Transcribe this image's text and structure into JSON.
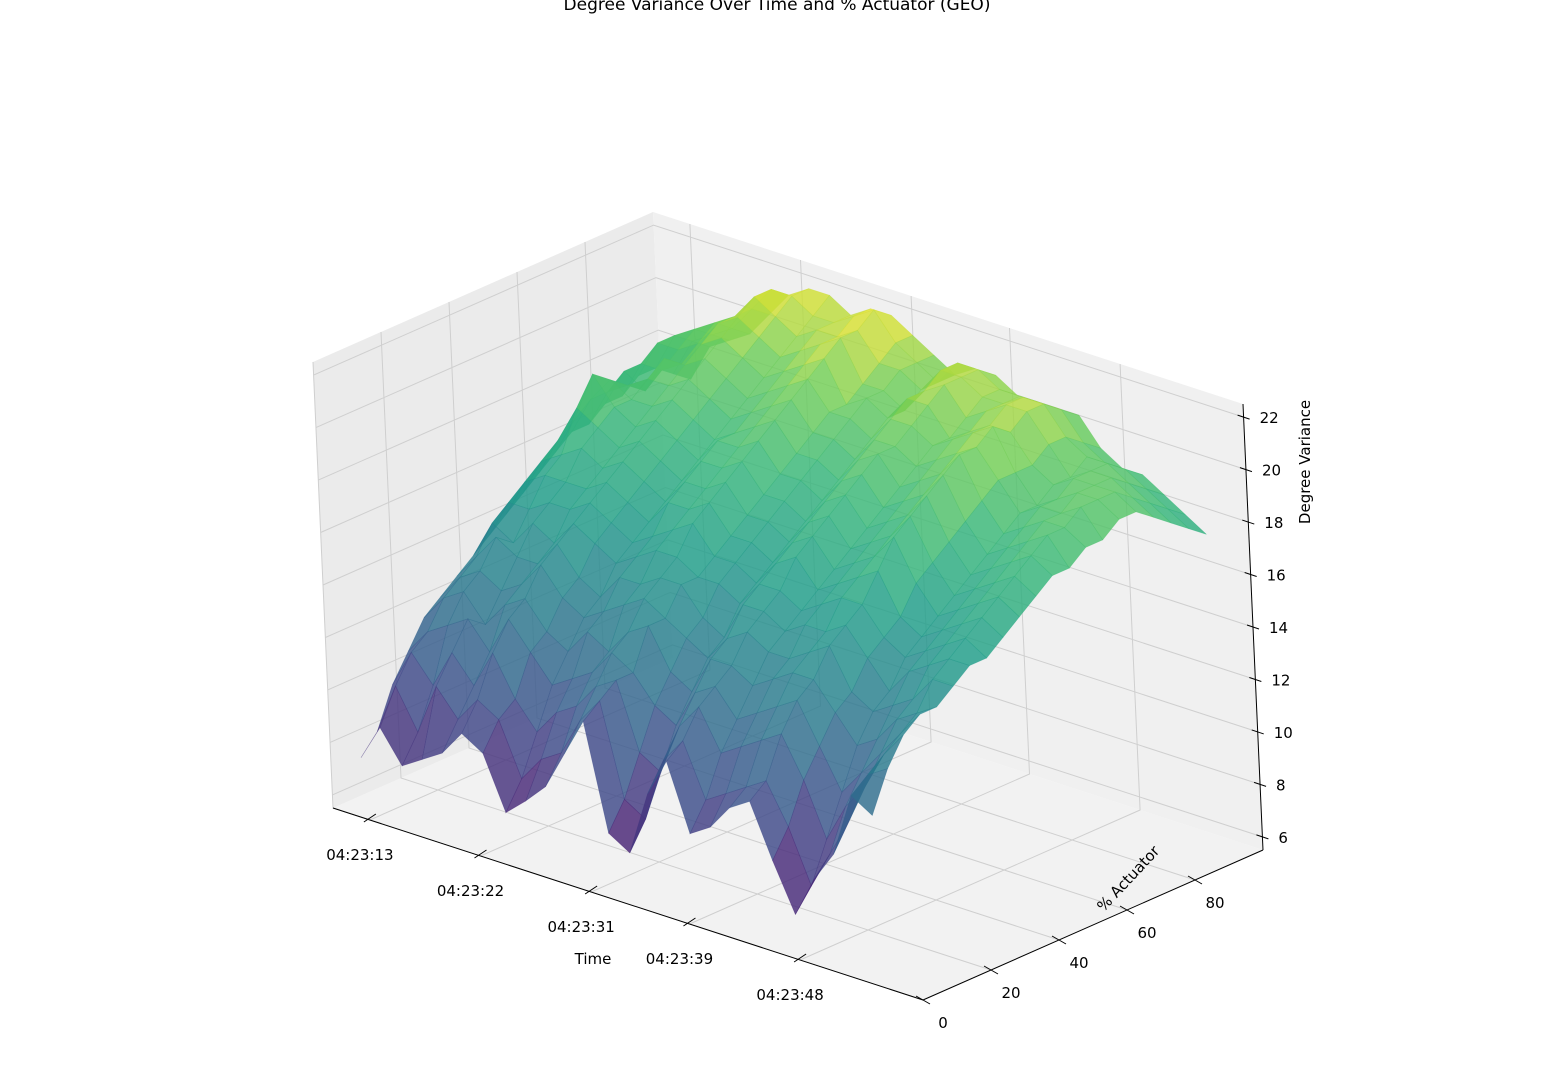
{
  "chart_data": {
    "type": "surface3d",
    "title": "Degree Variance Over Time and % Actuator (GEO)",
    "xlabel": "Time",
    "ylabel": "% Actuator",
    "zlabel": "Degree Variance",
    "x_ticks": [
      "04:23:13",
      "04:23:22",
      "04:23:31",
      "04:23:39",
      "04:23:48"
    ],
    "y_ticks": [
      "0",
      "20",
      "40",
      "60",
      "80"
    ],
    "z_ticks": [
      "6",
      "8",
      "10",
      "12",
      "14",
      "16",
      "18",
      "20",
      "22"
    ],
    "x_range": [
      "04:23:10",
      "04:23:58"
    ],
    "y_range": [
      0,
      100
    ],
    "z_range": [
      5.5,
      22.5
    ],
    "z_rows_every_5_percent": [
      [
        7.8,
        9.2,
        8.0,
        8.5,
        9.0,
        10.0,
        9.5,
        7.5,
        8.2,
        9.0,
        10.5,
        12.0,
        8.0,
        7.5,
        10.0,
        11.5,
        9.0,
        9.5,
        10.5,
        11.0,
        9.0,
        7.2,
        8.8,
        10.0,
        12.5,
        12.0
      ],
      [
        8.5,
        10.5,
        9.0,
        11.0,
        10.0,
        11.0,
        10.5,
        8.5,
        9.5,
        10.0,
        11.5,
        12.5,
        9.0,
        8.5,
        11.0,
        12.0,
        10.0,
        10.5,
        11.0,
        11.5,
        10.0,
        8.0,
        9.5,
        11.0,
        13.0,
        13.5
      ],
      [
        10.0,
        11.5,
        10.5,
        12.0,
        11.0,
        12.5,
        11.0,
        10.0,
        11.0,
        11.5,
        12.5,
        13.0,
        10.5,
        10.0,
        12.0,
        13.0,
        11.5,
        12.0,
        12.5,
        13.0,
        11.5,
        9.5,
        11.0,
        12.0,
        13.5,
        14.5
      ],
      [
        11.0,
        12.0,
        12.5,
        13.0,
        12.0,
        13.5,
        12.5,
        11.5,
        12.0,
        12.5,
        13.5,
        13.0,
        12.0,
        11.5,
        13.0,
        13.5,
        12.5,
        13.0,
        13.5,
        14.0,
        12.5,
        11.0,
        12.0,
        13.0,
        14.0,
        15.0
      ],
      [
        12.0,
        13.0,
        13.5,
        12.5,
        13.5,
        14.0,
        13.0,
        12.5,
        13.5,
        13.0,
        14.0,
        14.5,
        13.0,
        12.5,
        14.0,
        14.0,
        13.5,
        14.0,
        14.5,
        14.5,
        13.5,
        12.5,
        13.0,
        14.0,
        14.5,
        15.0
      ],
      [
        12.5,
        13.5,
        14.0,
        13.5,
        14.0,
        15.0,
        14.0,
        13.5,
        14.0,
        14.5,
        15.0,
        14.5,
        14.0,
        13.5,
        14.5,
        15.0,
        14.5,
        14.5,
        15.0,
        15.5,
        14.0,
        13.5,
        14.0,
        14.5,
        15.5,
        15.5
      ],
      [
        13.0,
        14.0,
        15.0,
        14.5,
        14.5,
        15.5,
        14.5,
        14.0,
        15.0,
        15.0,
        15.5,
        15.5,
        14.5,
        14.0,
        15.5,
        15.5,
        15.0,
        15.5,
        15.5,
        16.0,
        15.0,
        14.0,
        15.0,
        15.5,
        16.0,
        16.0
      ],
      [
        13.5,
        15.0,
        14.5,
        15.5,
        15.0,
        16.0,
        15.5,
        15.0,
        15.5,
        16.0,
        16.0,
        15.5,
        15.5,
        15.0,
        16.0,
        16.0,
        15.5,
        16.0,
        16.5,
        16.5,
        15.5,
        15.0,
        15.5,
        16.0,
        16.5,
        16.0
      ],
      [
        14.0,
        15.5,
        15.5,
        16.0,
        16.0,
        16.5,
        16.0,
        15.5,
        16.0,
        16.5,
        17.0,
        16.0,
        16.0,
        15.5,
        16.5,
        17.0,
        16.0,
        16.5,
        17.0,
        17.5,
        16.0,
        15.5,
        16.0,
        16.5,
        17.0,
        16.5
      ],
      [
        14.5,
        16.0,
        16.5,
        16.5,
        16.5,
        17.0,
        16.5,
        16.0,
        17.0,
        17.0,
        17.5,
        16.5,
        16.5,
        16.0,
        17.0,
        17.5,
        16.5,
        17.0,
        17.5,
        18.5,
        17.0,
        16.0,
        16.5,
        17.0,
        17.5,
        17.0
      ],
      [
        15.0,
        16.5,
        17.0,
        17.5,
        17.0,
        17.5,
        17.0,
        16.5,
        17.5,
        17.5,
        18.0,
        17.0,
        17.0,
        16.5,
        17.5,
        18.0,
        17.0,
        17.5,
        18.0,
        19.0,
        17.5,
        16.5,
        17.0,
        17.5,
        18.0,
        17.5
      ],
      [
        15.5,
        17.0,
        18.5,
        18.0,
        17.5,
        18.0,
        17.5,
        17.0,
        18.0,
        18.0,
        18.5,
        17.5,
        17.5,
        17.0,
        18.0,
        18.5,
        17.5,
        18.0,
        18.5,
        19.5,
        18.0,
        17.0,
        17.5,
        18.0,
        18.5,
        18.0
      ],
      [
        16.0,
        17.5,
        19.5,
        18.5,
        18.0,
        18.5,
        18.0,
        17.5,
        18.5,
        18.5,
        19.0,
        18.0,
        18.0,
        17.5,
        18.5,
        19.0,
        18.0,
        18.5,
        19.0,
        20.0,
        18.5,
        17.5,
        18.0,
        18.5,
        19.0,
        18.0
      ],
      [
        16.5,
        18.0,
        19.0,
        18.5,
        18.5,
        19.0,
        18.5,
        18.0,
        18.5,
        19.0,
        19.5,
        18.5,
        18.5,
        18.0,
        19.0,
        19.5,
        18.5,
        19.0,
        19.5,
        20.5,
        19.0,
        18.0,
        18.5,
        19.0,
        19.0,
        18.5
      ],
      [
        16.5,
        18.0,
        18.5,
        19.0,
        19.0,
        19.5,
        19.0,
        18.5,
        19.0,
        19.5,
        20.0,
        19.0,
        19.0,
        18.5,
        19.5,
        19.5,
        19.0,
        19.5,
        20.0,
        20.5,
        19.5,
        18.5,
        19.0,
        19.0,
        19.5,
        18.5
      ],
      [
        17.0,
        18.5,
        18.0,
        19.5,
        19.5,
        20.0,
        19.5,
        19.0,
        19.5,
        20.0,
        20.5,
        19.5,
        19.5,
        19.0,
        20.0,
        20.0,
        19.5,
        20.0,
        20.5,
        21.0,
        19.5,
        18.5,
        19.0,
        19.5,
        19.5,
        19.0
      ],
      [
        17.0,
        18.5,
        18.5,
        19.0,
        20.0,
        20.5,
        20.0,
        19.5,
        20.0,
        20.5,
        21.0,
        19.5,
        20.0,
        19.5,
        20.5,
        20.5,
        19.5,
        20.0,
        20.5,
        20.5,
        19.5,
        19.0,
        19.5,
        19.5,
        19.5,
        19.0
      ],
      [
        17.5,
        19.0,
        19.0,
        19.5,
        20.5,
        21.0,
        20.5,
        20.0,
        20.5,
        21.0,
        21.5,
        20.0,
        20.0,
        19.5,
        20.5,
        21.0,
        20.0,
        20.5,
        21.0,
        21.0,
        20.0,
        19.0,
        19.5,
        19.5,
        19.0,
        18.5
      ],
      [
        17.5,
        19.0,
        19.5,
        20.0,
        20.5,
        21.5,
        21.0,
        20.5,
        21.0,
        21.0,
        21.5,
        20.5,
        20.5,
        20.0,
        21.0,
        21.0,
        20.5,
        20.5,
        21.0,
        21.0,
        20.0,
        19.5,
        19.5,
        19.0,
        18.5,
        18.0
      ],
      [
        17.0,
        18.5,
        19.0,
        19.5,
        20.5,
        21.5,
        21.5,
        21.0,
        21.0,
        21.5,
        22.0,
        21.0,
        20.5,
        20.0,
        21.0,
        21.0,
        20.5,
        20.5,
        20.5,
        20.5,
        19.5,
        19.0,
        19.0,
        18.5,
        18.0,
        17.5
      ],
      [
        16.5,
        18.0,
        18.5,
        19.0,
        20.0,
        21.0,
        21.5,
        21.5,
        21.0,
        21.5,
        21.5,
        21.0,
        20.5,
        20.0,
        20.5,
        20.5,
        20.0,
        20.0,
        20.0,
        20.0,
        19.0,
        18.5,
        18.5,
        18.0,
        17.5,
        17.0
      ]
    ]
  }
}
